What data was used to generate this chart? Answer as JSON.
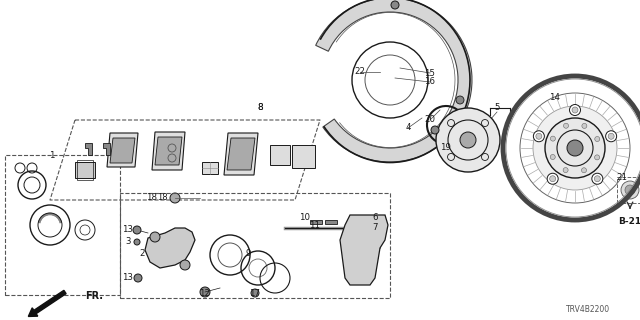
{
  "part_code": "TRV4B2200",
  "bg_color": "#ffffff",
  "lc": "#1a1a1a",
  "fig_width": 6.4,
  "fig_height": 3.2,
  "dpi": 100
}
